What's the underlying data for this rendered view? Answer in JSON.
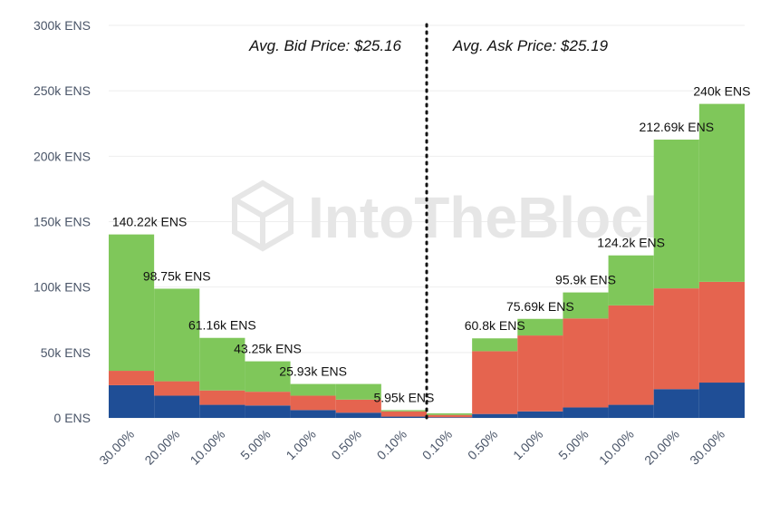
{
  "watermark": "IntoTheBlock",
  "annotations": {
    "bid": "Avg. Bid Price: $25.16",
    "ask": "Avg. Ask Price: $25.19"
  },
  "colors": {
    "green": "#7fc75a",
    "red": "#e5644f",
    "blue": "#1f4e96",
    "grid": "#eeeeee",
    "divider": "#111111"
  },
  "chart_data": {
    "type": "bar",
    "stacked": true,
    "categories": [
      "30.00%",
      "20.00%",
      "10.00%",
      "5.00%",
      "1.00%",
      "0.50%",
      "0.10%",
      "0.10%",
      "0.50%",
      "1.00%",
      "5.00%",
      "10.00%",
      "20.00%",
      "30.00%"
    ],
    "series": [
      {
        "color": "blue",
        "values": [
          25000,
          17000,
          10000,
          9500,
          6000,
          4000,
          1000,
          500,
          3000,
          5000,
          8000,
          10000,
          22000,
          27000
        ]
      },
      {
        "color": "red",
        "values": [
          11000,
          11000,
          11000,
          10500,
          11000,
          10000,
          4000,
          1800,
          48000,
          58000,
          68000,
          76000,
          77000,
          77000
        ]
      },
      {
        "color": "green",
        "values": [
          104220,
          70750,
          40160,
          23250,
          8930,
          11930,
          950,
          1200,
          9800,
          12690,
          19900,
          38200,
          113690,
          136000
        ]
      }
    ],
    "totals": [
      140220,
      98750,
      61160,
      43250,
      25930,
      25930,
      5950,
      3500,
      60800,
      75690,
      95900,
      124200,
      212690,
      240000
    ],
    "data_labels": [
      "140.22k ENS",
      "98.75k ENS",
      "61.16k ENS",
      "43.25k ENS",
      "25.93k ENS",
      "",
      "5.95k ENS",
      "",
      "60.8k ENS",
      "75.69k ENS",
      "95.9k ENS",
      "124.2k ENS",
      "212.69k ENS",
      "240k ENS"
    ],
    "ylim": [
      0,
      300000
    ],
    "yticks": [
      {
        "value": 0,
        "label": "0 ENS"
      },
      {
        "value": 50000,
        "label": "50k ENS"
      },
      {
        "value": 100000,
        "label": "100k ENS"
      },
      {
        "value": 150000,
        "label": "150k ENS"
      },
      {
        "value": 200000,
        "label": "200k ENS"
      },
      {
        "value": 250000,
        "label": "250k ENS"
      },
      {
        "value": 300000,
        "label": "300k ENS"
      }
    ],
    "grid": true,
    "legend": "none"
  }
}
